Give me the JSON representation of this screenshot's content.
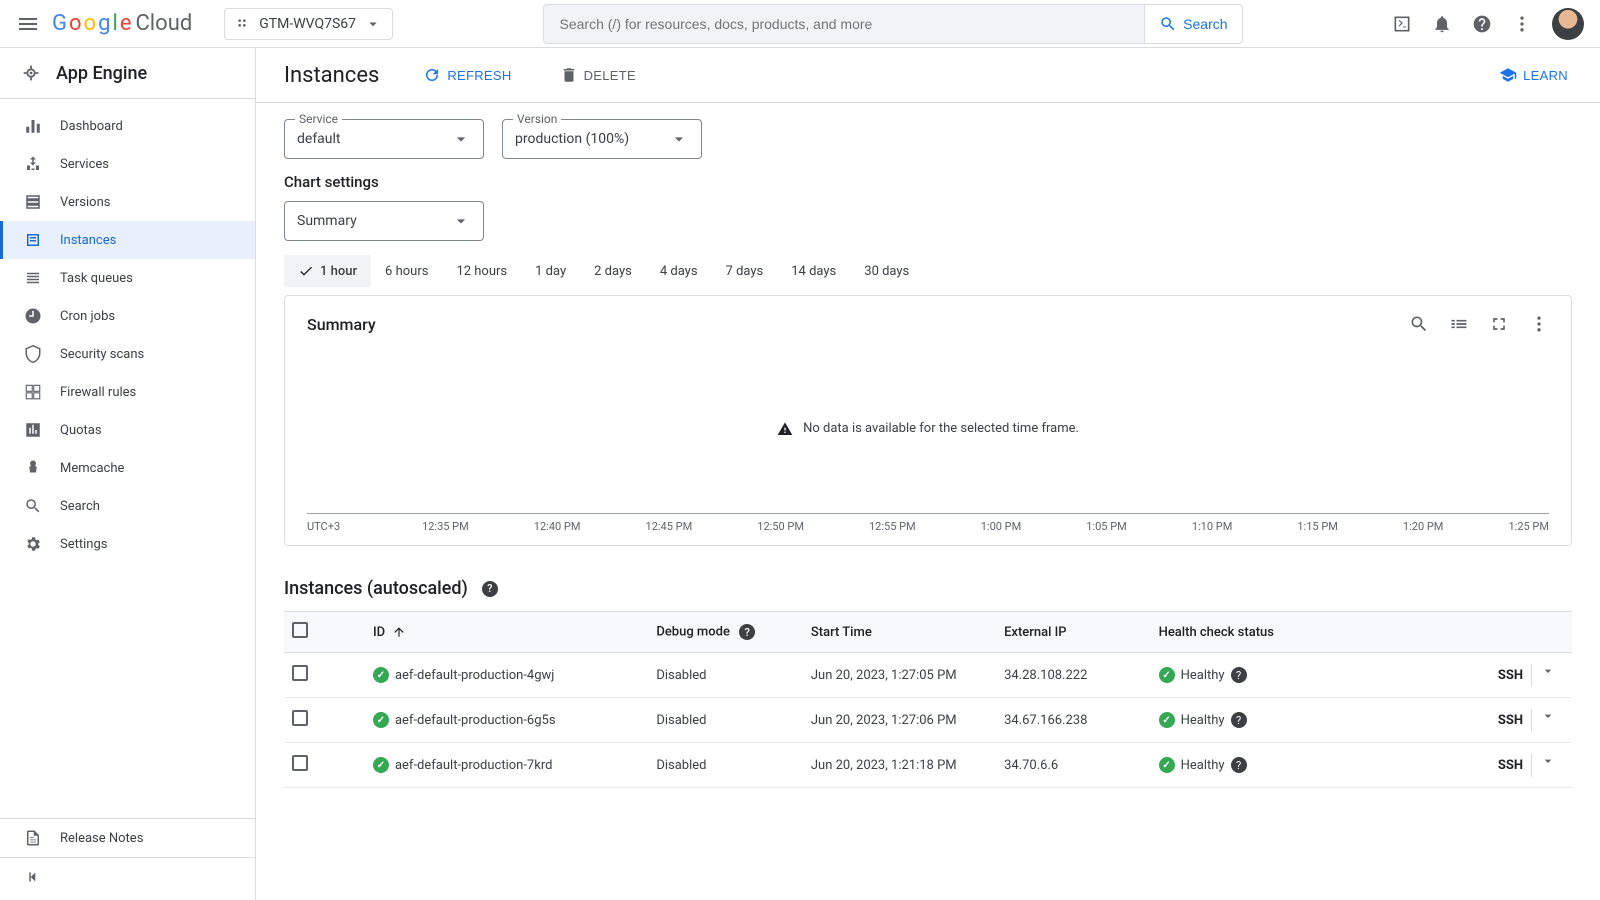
{
  "top": {
    "logo_cloud": "Cloud",
    "project": "GTM-WVQ7S67",
    "search_placeholder": "Search (/) for resources, docs, products, and more",
    "search_button": "Search"
  },
  "sidebar": {
    "product": "App Engine",
    "items": [
      {
        "label": "Dashboard"
      },
      {
        "label": "Services"
      },
      {
        "label": "Versions"
      },
      {
        "label": "Instances"
      },
      {
        "label": "Task queues"
      },
      {
        "label": "Cron jobs"
      },
      {
        "label": "Security scans"
      },
      {
        "label": "Firewall rules"
      },
      {
        "label": "Quotas"
      },
      {
        "label": "Memcache"
      },
      {
        "label": "Search"
      },
      {
        "label": "Settings"
      }
    ],
    "release_notes": "Release Notes"
  },
  "header": {
    "title": "Instances",
    "refresh": "REFRESH",
    "delete": "DELETE",
    "learn": "LEARN"
  },
  "filters": {
    "service_label": "Service",
    "service_value": "default",
    "version_label": "Version",
    "version_value": "production (100%)",
    "chart_settings_label": "Chart settings",
    "chart_select_value": "Summary"
  },
  "time_ranges": [
    "1 hour",
    "6 hours",
    "12 hours",
    "1 day",
    "2 days",
    "4 days",
    "7 days",
    "14 days",
    "30 days"
  ],
  "chart": {
    "title": "Summary",
    "empty_message": "No data is available for the selected time frame.",
    "tz_label": "UTC+3",
    "x_ticks": [
      "12:35 PM",
      "12:40 PM",
      "12:45 PM",
      "12:50 PM",
      "12:55 PM",
      "1:00 PM",
      "1:05 PM",
      "1:10 PM",
      "1:15 PM",
      "1:20 PM",
      "1:25 PM"
    ],
    "colors": {
      "border": "#dadce0",
      "axis": "#9aa0a6",
      "text": "#5f6368"
    }
  },
  "table": {
    "heading": "Instances (autoscaled)",
    "cols": {
      "id": "ID",
      "debug": "Debug mode",
      "start": "Start Time",
      "ip": "External IP",
      "health": "Health check status"
    },
    "ssh_label": "SSH",
    "healthy_label": "Healthy",
    "rows": [
      {
        "id": "aef-default-production-4gwj",
        "debug": "Disabled",
        "start": "Jun 20, 2023, 1:27:05 PM",
        "ip": "34.28.108.222"
      },
      {
        "id": "aef-default-production-6g5s",
        "debug": "Disabled",
        "start": "Jun 20, 2023, 1:27:06 PM",
        "ip": "34.67.166.238"
      },
      {
        "id": "aef-default-production-7krd",
        "debug": "Disabled",
        "start": "Jun 20, 2023, 1:21:18 PM",
        "ip": "34.70.6.6"
      }
    ]
  }
}
